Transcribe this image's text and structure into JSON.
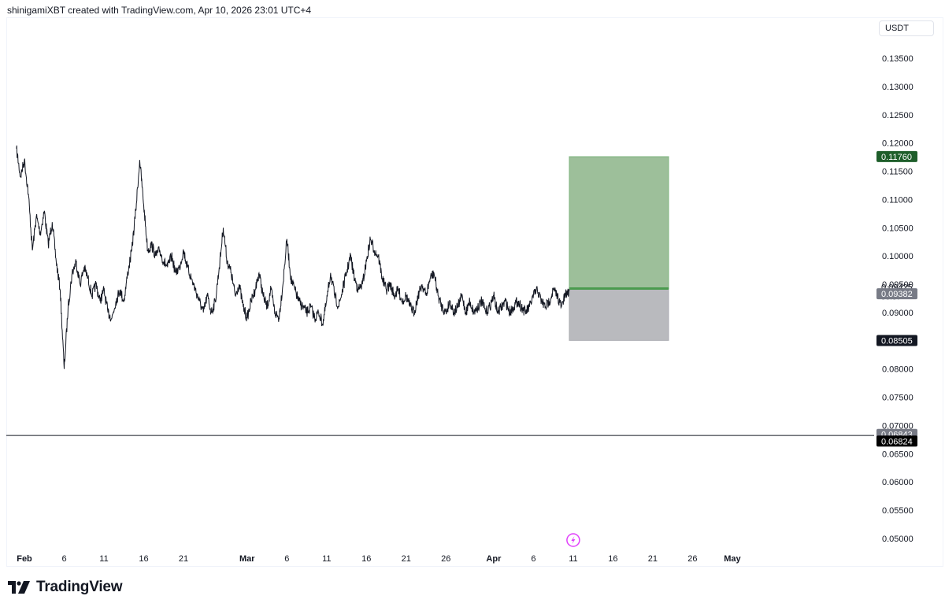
{
  "header": {
    "attribution": "shinigamiXBT created with TradingView.com, Apr 10, 2026 23:01 UTC+4"
  },
  "price_axis": {
    "unit": "USDT"
  },
  "footer": {
    "brand": "TradingView"
  },
  "colors": {
    "candle": "#131722",
    "profit_zone": "#9dbf9a",
    "loss_zone": "#b9babe",
    "entry_line": "#4a9b4e",
    "target_tag": "#1e5e2a",
    "current_tag": "#787b86",
    "stop_tag": "#131722",
    "level_tag_gray": "#787b86",
    "level_tag_black": "#000000",
    "event_icon": "#e040fb"
  },
  "chart_data": {
    "type": "line",
    "title": "",
    "ylim": [
      0.045,
      0.139
    ],
    "y_ticks": [
      "0.13500",
      "0.13000",
      "0.12500",
      "0.12000",
      "0.11500",
      "0.11000",
      "0.10500",
      "0.10000",
      "0.09500",
      "0.09000",
      "0.08500",
      "0.08000",
      "0.07500",
      "0.07000",
      "0.06500",
      "0.06000",
      "0.05500",
      "0.05000"
    ],
    "y_tick_values": [
      0.135,
      0.13,
      0.125,
      0.12,
      0.115,
      0.11,
      0.105,
      0.1,
      0.095,
      0.09,
      0.085,
      0.08,
      0.075,
      0.07,
      0.065,
      0.06,
      0.055,
      0.05
    ],
    "x_axis": {
      "range": [
        "2026-01-31",
        "2026-05-01"
      ],
      "ticks": [
        {
          "label": "Feb",
          "date": "2026-02-01",
          "bold": true
        },
        {
          "label": "6",
          "date": "2026-02-06"
        },
        {
          "label": "11",
          "date": "2026-02-11"
        },
        {
          "label": "16",
          "date": "2026-02-16"
        },
        {
          "label": "21",
          "date": "2026-02-21"
        },
        {
          "label": "Mar",
          "date": "2026-03-01",
          "bold": true
        },
        {
          "label": "6",
          "date": "2026-03-06"
        },
        {
          "label": "11",
          "date": "2026-03-11"
        },
        {
          "label": "16",
          "date": "2026-03-16"
        },
        {
          "label": "21",
          "date": "2026-03-21"
        },
        {
          "label": "26",
          "date": "2026-03-26"
        },
        {
          "label": "Apr",
          "date": "2026-04-01",
          "bold": true
        },
        {
          "label": "6",
          "date": "2026-04-06"
        },
        {
          "label": "11",
          "date": "2026-04-11"
        },
        {
          "label": "16",
          "date": "2026-04-16"
        },
        {
          "label": "21",
          "date": "2026-04-21"
        },
        {
          "label": "26",
          "date": "2026-04-26"
        },
        {
          "label": "May",
          "date": "2026-05-01",
          "bold": true
        }
      ]
    },
    "series": [
      {
        "points": [
          [
            "2026-01-31T00:00",
            0.119
          ],
          [
            "2026-01-31T12:00",
            0.114
          ],
          [
            "2026-02-01T00:00",
            0.117
          ],
          [
            "2026-02-01T12:00",
            0.111
          ],
          [
            "2026-02-02T00:00",
            0.101
          ],
          [
            "2026-02-02T12:00",
            0.107
          ],
          [
            "2026-02-03T00:00",
            0.104
          ],
          [
            "2026-02-03T12:00",
            0.108
          ],
          [
            "2026-02-04T00:00",
            0.102
          ],
          [
            "2026-02-04T12:00",
            0.106
          ],
          [
            "2026-02-05T00:00",
            0.099
          ],
          [
            "2026-02-05T12:00",
            0.094
          ],
          [
            "2026-02-06T00:00",
            0.08
          ],
          [
            "2026-02-06T12:00",
            0.091
          ],
          [
            "2026-02-07T00:00",
            0.097
          ],
          [
            "2026-02-07T12:00",
            0.099
          ],
          [
            "2026-02-08T00:00",
            0.095
          ],
          [
            "2026-02-08T12:00",
            0.098
          ],
          [
            "2026-02-09T00:00",
            0.096
          ],
          [
            "2026-02-09T12:00",
            0.093
          ],
          [
            "2026-02-10T00:00",
            0.095
          ],
          [
            "2026-02-10T12:00",
            0.092
          ],
          [
            "2026-02-11T00:00",
            0.094
          ],
          [
            "2026-02-11T12:00",
            0.09
          ],
          [
            "2026-02-12T00:00",
            0.089
          ],
          [
            "2026-02-12T12:00",
            0.092
          ],
          [
            "2026-02-13T00:00",
            0.094
          ],
          [
            "2026-02-13T12:00",
            0.092
          ],
          [
            "2026-02-14T00:00",
            0.097
          ],
          [
            "2026-02-14T12:00",
            0.101
          ],
          [
            "2026-02-15T00:00",
            0.108
          ],
          [
            "2026-02-15T12:00",
            0.117
          ],
          [
            "2026-02-16T00:00",
            0.109
          ],
          [
            "2026-02-16T12:00",
            0.101
          ],
          [
            "2026-02-17T00:00",
            0.102
          ],
          [
            "2026-02-17T12:00",
            0.1
          ],
          [
            "2026-02-18T00:00",
            0.101
          ],
          [
            "2026-02-18T12:00",
            0.099
          ],
          [
            "2026-02-19T00:00",
            0.098
          ],
          [
            "2026-02-19T12:00",
            0.1
          ],
          [
            "2026-02-20T00:00",
            0.097
          ],
          [
            "2026-02-20T12:00",
            0.098
          ],
          [
            "2026-02-21T00:00",
            0.101
          ],
          [
            "2026-02-21T12:00",
            0.098
          ],
          [
            "2026-02-22T00:00",
            0.096
          ],
          [
            "2026-02-22T12:00",
            0.094
          ],
          [
            "2026-02-23T00:00",
            0.092
          ],
          [
            "2026-02-23T12:00",
            0.09
          ],
          [
            "2026-02-24T00:00",
            0.093
          ],
          [
            "2026-02-24T12:00",
            0.09
          ],
          [
            "2026-02-25T00:00",
            0.092
          ],
          [
            "2026-02-25T12:00",
            0.098
          ],
          [
            "2026-02-26T00:00",
            0.105
          ],
          [
            "2026-02-26T12:00",
            0.099
          ],
          [
            "2026-02-27T00:00",
            0.097
          ],
          [
            "2026-02-27T12:00",
            0.093
          ],
          [
            "2026-02-28T00:00",
            0.095
          ],
          [
            "2026-02-28T12:00",
            0.091
          ],
          [
            "2026-03-01T00:00",
            0.089
          ],
          [
            "2026-03-01T12:00",
            0.092
          ],
          [
            "2026-03-02T00:00",
            0.094
          ],
          [
            "2026-03-02T12:00",
            0.097
          ],
          [
            "2026-03-03T00:00",
            0.093
          ],
          [
            "2026-03-03T12:00",
            0.091
          ],
          [
            "2026-03-04T00:00",
            0.094
          ],
          [
            "2026-03-04T12:00",
            0.09
          ],
          [
            "2026-03-05T00:00",
            0.089
          ],
          [
            "2026-03-05T12:00",
            0.095
          ],
          [
            "2026-03-06T00:00",
            0.103
          ],
          [
            "2026-03-06T12:00",
            0.096
          ],
          [
            "2026-03-07T00:00",
            0.094
          ],
          [
            "2026-03-07T12:00",
            0.092
          ],
          [
            "2026-03-08T00:00",
            0.091
          ],
          [
            "2026-03-08T12:00",
            0.09
          ],
          [
            "2026-03-09T00:00",
            0.091
          ],
          [
            "2026-03-09T12:00",
            0.089
          ],
          [
            "2026-03-10T00:00",
            0.09
          ],
          [
            "2026-03-10T12:00",
            0.088
          ],
          [
            "2026-03-11T00:00",
            0.092
          ],
          [
            "2026-03-11T12:00",
            0.097
          ],
          [
            "2026-03-12T00:00",
            0.093
          ],
          [
            "2026-03-12T12:00",
            0.091
          ],
          [
            "2026-03-13T00:00",
            0.094
          ],
          [
            "2026-03-13T12:00",
            0.097
          ],
          [
            "2026-03-14T00:00",
            0.1
          ],
          [
            "2026-03-14T12:00",
            0.096
          ],
          [
            "2026-03-15T00:00",
            0.094
          ],
          [
            "2026-03-15T12:00",
            0.095
          ],
          [
            "2026-03-16T00:00",
            0.099
          ],
          [
            "2026-03-16T12:00",
            0.103
          ],
          [
            "2026-03-17T00:00",
            0.101
          ],
          [
            "2026-03-17T12:00",
            0.1
          ],
          [
            "2026-03-18T00:00",
            0.096
          ],
          [
            "2026-03-18T12:00",
            0.094
          ],
          [
            "2026-03-19T00:00",
            0.095
          ],
          [
            "2026-03-19T12:00",
            0.093
          ],
          [
            "2026-03-20T00:00",
            0.094
          ],
          [
            "2026-03-20T12:00",
            0.092
          ],
          [
            "2026-03-21T00:00",
            0.093
          ],
          [
            "2026-03-21T12:00",
            0.091
          ],
          [
            "2026-03-22T00:00",
            0.09
          ],
          [
            "2026-03-22T12:00",
            0.093
          ],
          [
            "2026-03-23T00:00",
            0.095
          ],
          [
            "2026-03-23T12:00",
            0.093
          ],
          [
            "2026-03-24T00:00",
            0.096
          ],
          [
            "2026-03-24T12:00",
            0.097
          ],
          [
            "2026-03-25T00:00",
            0.093
          ],
          [
            "2026-03-25T12:00",
            0.091
          ],
          [
            "2026-03-26T00:00",
            0.09
          ],
          [
            "2026-03-26T12:00",
            0.092
          ],
          [
            "2026-03-27T00:00",
            0.09
          ],
          [
            "2026-03-27T12:00",
            0.091
          ],
          [
            "2026-03-28T00:00",
            0.093
          ],
          [
            "2026-03-28T12:00",
            0.09
          ],
          [
            "2026-03-29T00:00",
            0.092
          ],
          [
            "2026-03-29T12:00",
            0.09
          ],
          [
            "2026-03-30T00:00",
            0.091
          ],
          [
            "2026-03-30T12:00",
            0.092
          ],
          [
            "2026-03-31T00:00",
            0.09
          ],
          [
            "2026-03-31T12:00",
            0.091
          ],
          [
            "2026-04-01T00:00",
            0.093
          ],
          [
            "2026-04-01T12:00",
            0.09
          ],
          [
            "2026-04-02T00:00",
            0.091
          ],
          [
            "2026-04-02T12:00",
            0.092
          ],
          [
            "2026-04-03T00:00",
            0.09
          ],
          [
            "2026-04-03T12:00",
            0.091
          ],
          [
            "2026-04-04T00:00",
            0.092
          ],
          [
            "2026-04-04T12:00",
            0.091
          ],
          [
            "2026-04-05T00:00",
            0.09
          ],
          [
            "2026-04-05T12:00",
            0.091
          ],
          [
            "2026-04-06T00:00",
            0.093
          ],
          [
            "2026-04-06T12:00",
            0.094
          ],
          [
            "2026-04-07T00:00",
            0.092
          ],
          [
            "2026-04-07T12:00",
            0.091
          ],
          [
            "2026-04-08T00:00",
            0.092
          ],
          [
            "2026-04-08T12:00",
            0.094
          ],
          [
            "2026-04-09T00:00",
            0.093
          ],
          [
            "2026-04-09T12:00",
            0.091
          ],
          [
            "2026-04-10T00:00",
            0.093
          ],
          [
            "2026-04-10T12:00",
            0.0938
          ]
        ]
      }
    ],
    "annotations": {
      "position": {
        "start": "2026-04-10T12:00",
        "end": "2026-04-23T00:00",
        "entry": 0.09425,
        "target": 0.1176,
        "stop": 0.08505
      },
      "horizontal_line": 0.06824,
      "event_marker_date": "2026-04-11"
    },
    "price_tags": {
      "target": "0.11760",
      "entry": "0.09425",
      "countdown": "58:37",
      "current": "0.09382",
      "stop": "0.08505",
      "level_a": "0.06843",
      "level_b": "0.06824"
    }
  }
}
